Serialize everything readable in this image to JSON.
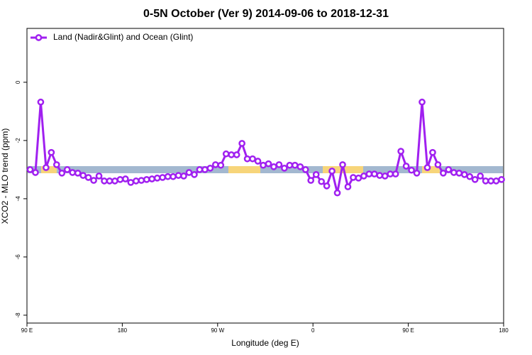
{
  "chart_data": {
    "type": "line",
    "title": "0-5N October (Ver 9)   2014-09-06 to 2018-12-31",
    "x_label": "Longitude (deg E)",
    "y_label": "XCO2 - MLO trend (ppm)",
    "xlim": [
      90,
      540
    ],
    "ylim": [
      -8.27,
      1.85
    ],
    "xticks": [
      {
        "value": 90,
        "label": "90 E"
      },
      180,
      {
        "value": 270,
        "label": "90 W"
      },
      {
        "value": 360,
        "label": "0"
      },
      {
        "value": 450,
        "label": "90 E"
      },
      {
        "value": 540,
        "label": "180"
      }
    ],
    "yticks": [
      -8,
      -6,
      -4,
      -2,
      0
    ],
    "legend": "top-left",
    "x": [
      93,
      98,
      103,
      108,
      113,
      118,
      123,
      128,
      133,
      138,
      143,
      148,
      153,
      158,
      163,
      168,
      173,
      178,
      183,
      188,
      193,
      198,
      203,
      208,
      213,
      218,
      223,
      228,
      233,
      238,
      243,
      248,
      253,
      258,
      263,
      268,
      273,
      278,
      283,
      288,
      293,
      298,
      303,
      308,
      313,
      318,
      323,
      328,
      333,
      338,
      343,
      348,
      353,
      358,
      363,
      368,
      373,
      378,
      383,
      388,
      393,
      398,
      403,
      408,
      413,
      418,
      423,
      428,
      433,
      438,
      443,
      448,
      453,
      458,
      463,
      468,
      473,
      478,
      483,
      488,
      493,
      498,
      503,
      508,
      513,
      518,
      523,
      528,
      533,
      538
    ],
    "series": [
      {
        "name": "Land (Nadir&Glint) and Ocean (Glint)",
        "color": "#a020f0",
        "values": [
          -3.0,
          -3.1,
          -0.68,
          -2.93,
          -2.41,
          -2.83,
          -3.12,
          -3.0,
          -3.1,
          -3.12,
          -3.2,
          -3.27,
          -3.37,
          -3.22,
          -3.39,
          -3.39,
          -3.39,
          -3.34,
          -3.32,
          -3.44,
          -3.39,
          -3.37,
          -3.34,
          -3.32,
          -3.29,
          -3.27,
          -3.24,
          -3.24,
          -3.2,
          -3.22,
          -3.1,
          -3.17,
          -3.0,
          -3.0,
          -2.95,
          -2.83,
          -2.85,
          -2.46,
          -2.49,
          -2.49,
          -2.1,
          -2.63,
          -2.63,
          -2.71,
          -2.85,
          -2.8,
          -2.9,
          -2.83,
          -2.95,
          -2.85,
          -2.85,
          -2.9,
          -3.0,
          -3.37,
          -3.17,
          -3.41,
          -3.56,
          -3.05,
          -3.8,
          -2.83,
          -3.59,
          -3.27,
          -3.29,
          -3.22,
          -3.15,
          -3.15,
          -3.2,
          -3.22,
          -3.15,
          -3.15,
          -2.37,
          -2.88,
          -3.02,
          -3.12,
          -0.68,
          -2.93,
          -2.41,
          -2.83,
          -3.12,
          -3.0,
          -3.1,
          -3.12,
          -3.17,
          -3.24,
          -3.34,
          -3.22,
          -3.39,
          -3.39,
          -3.39,
          -3.34
        ]
      }
    ]
  }
}
